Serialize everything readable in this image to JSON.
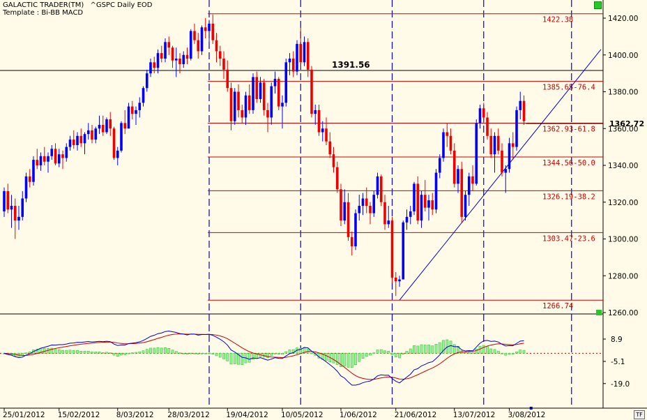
{
  "header": {
    "title": "GALACTIC TRADER(TM)",
    "template": "Template : Bi-BB MACD",
    "symbol": "^GSPC Daily EOD"
  },
  "chart_data": [
    {
      "type": "candlestick",
      "ylim": [
        1255,
        1430
      ],
      "yticks": [
        "1420.00",
        "1400.00",
        "1380.00",
        "1360.00",
        "1340.00",
        "1320.00",
        "1300.00",
        "1280.00",
        "1260.00"
      ],
      "ytick_values": [
        1420,
        1400,
        1380,
        1360,
        1340,
        1320,
        1300,
        1280,
        1260
      ],
      "current_price": 1362.72,
      "current_price_label": "1362.72",
      "resistance": {
        "value": 1391.56,
        "label": "1391.56"
      },
      "fib_levels": [
        {
          "value": 1422.38,
          "label": "1422.38"
        },
        {
          "value": 1385.65,
          "label": "1385.65-76.4"
        },
        {
          "value": 1362.93,
          "label": "1362.93-61.8"
        },
        {
          "value": 1344.56,
          "label": "1344.56-50.0"
        },
        {
          "value": 1326.19,
          "label": "1326.19-38.2"
        },
        {
          "value": 1303.47,
          "label": "1303.47-23.6"
        },
        {
          "value": 1266.74,
          "label": "1266.74"
        }
      ],
      "trendline": {
        "from": {
          "bar": 108,
          "price": 1266.74
        },
        "to": {
          "bar": 170,
          "price": 1403
        }
      },
      "vertical_markers_bar": [
        56,
        81,
        106,
        131,
        155
      ],
      "candles": [
        [
          1315,
          1328,
          1312,
          1326
        ],
        [
          1326,
          1330,
          1314,
          1316
        ],
        [
          1316,
          1324,
          1306,
          1318
        ],
        [
          1318,
          1322,
          1300,
          1310
        ],
        [
          1310,
          1318,
          1305,
          1312
        ],
        [
          1312,
          1326,
          1310,
          1322
        ],
        [
          1322,
          1336,
          1320,
          1334
        ],
        [
          1334,
          1338,
          1328,
          1331
        ],
        [
          1331,
          1345,
          1329,
          1343
        ],
        [
          1343,
          1349,
          1338,
          1340
        ],
        [
          1340,
          1347,
          1337,
          1345
        ],
        [
          1345,
          1350,
          1340,
          1342
        ],
        [
          1342,
          1347,
          1336,
          1345
        ],
        [
          1345,
          1351,
          1343,
          1349
        ],
        [
          1349,
          1352,
          1340,
          1341
        ],
        [
          1341,
          1349,
          1339,
          1346
        ],
        [
          1346,
          1348,
          1338,
          1344
        ],
        [
          1344,
          1352,
          1342,
          1350
        ],
        [
          1350,
          1356,
          1348,
          1354
        ],
        [
          1354,
          1359,
          1349,
          1351
        ],
        [
          1351,
          1358,
          1348,
          1356
        ],
        [
          1356,
          1360,
          1350,
          1352
        ],
        [
          1352,
          1358,
          1346,
          1357
        ],
        [
          1357,
          1363,
          1354,
          1359
        ],
        [
          1359,
          1362,
          1352,
          1354
        ],
        [
          1354,
          1361,
          1352,
          1360
        ],
        [
          1360,
          1367,
          1357,
          1362
        ],
        [
          1362,
          1367,
          1356,
          1358
        ],
        [
          1358,
          1366,
          1357,
          1365
        ],
        [
          1365,
          1369,
          1356,
          1360
        ],
        [
          1360,
          1361,
          1343,
          1344
        ],
        [
          1344,
          1350,
          1340,
          1348
        ],
        [
          1348,
          1364,
          1347,
          1363
        ],
        [
          1363,
          1370,
          1357,
          1360
        ],
        [
          1360,
          1374,
          1360,
          1372
        ],
        [
          1372,
          1375,
          1365,
          1368
        ],
        [
          1368,
          1372,
          1362,
          1370
        ],
        [
          1370,
          1377,
          1366,
          1374
        ],
        [
          1374,
          1383,
          1372,
          1382
        ],
        [
          1382,
          1392,
          1380,
          1390
        ],
        [
          1390,
          1398,
          1388,
          1396
        ],
        [
          1396,
          1399,
          1390,
          1393
        ],
        [
          1393,
          1403,
          1390,
          1401
        ],
        [
          1401,
          1405,
          1396,
          1398
        ],
        [
          1398,
          1409,
          1396,
          1407
        ],
        [
          1407,
          1410,
          1400,
          1404
        ],
        [
          1404,
          1405,
          1393,
          1397
        ],
        [
          1397,
          1404,
          1388,
          1398
        ],
        [
          1398,
          1401,
          1390,
          1395
        ],
        [
          1395,
          1402,
          1393,
          1400
        ],
        [
          1400,
          1404,
          1395,
          1398
        ],
        [
          1398,
          1414,
          1397,
          1413
        ],
        [
          1413,
          1417,
          1406,
          1408
        ],
        [
          1408,
          1412,
          1398,
          1402
        ],
        [
          1402,
          1416,
          1400,
          1415
        ],
        [
          1415,
          1420,
          1409,
          1413
        ],
        [
          1413,
          1419,
          1405,
          1417
        ],
        [
          1417,
          1422,
          1406,
          1408
        ],
        [
          1408,
          1412,
          1396,
          1402
        ],
        [
          1402,
          1405,
          1394,
          1398
        ],
        [
          1398,
          1402,
          1387,
          1392
        ],
        [
          1392,
          1397,
          1380,
          1382
        ],
        [
          1382,
          1385,
          1359,
          1364
        ],
        [
          1364,
          1382,
          1362,
          1380
        ],
        [
          1380,
          1384,
          1366,
          1370
        ],
        [
          1370,
          1373,
          1363,
          1366
        ],
        [
          1366,
          1380,
          1362,
          1378
        ],
        [
          1378,
          1384,
          1368,
          1370
        ],
        [
          1370,
          1390,
          1368,
          1388
        ],
        [
          1388,
          1391,
          1374,
          1376
        ],
        [
          1376,
          1388,
          1374,
          1385
        ],
        [
          1385,
          1387,
          1367,
          1370
        ],
        [
          1370,
          1374,
          1358,
          1366
        ],
        [
          1366,
          1385,
          1362,
          1383
        ],
        [
          1383,
          1391,
          1379,
          1387
        ],
        [
          1387,
          1388,
          1370,
          1372
        ],
        [
          1372,
          1378,
          1360,
          1374
        ],
        [
          1374,
          1398,
          1372,
          1396
        ],
        [
          1396,
          1401,
          1389,
          1398
        ],
        [
          1398,
          1402,
          1388,
          1391
        ],
        [
          1391,
          1408,
          1389,
          1406
        ],
        [
          1406,
          1415,
          1393,
          1396
        ],
        [
          1396,
          1410,
          1394,
          1407
        ],
        [
          1407,
          1409,
          1388,
          1392
        ],
        [
          1392,
          1394,
          1366,
          1368
        ],
        [
          1368,
          1373,
          1362,
          1370
        ],
        [
          1370,
          1373,
          1356,
          1358
        ],
        [
          1358,
          1364,
          1353,
          1360
        ],
        [
          1360,
          1366,
          1351,
          1353
        ],
        [
          1353,
          1358,
          1344,
          1346
        ],
        [
          1346,
          1350,
          1336,
          1339
        ],
        [
          1339,
          1342,
          1325,
          1327
        ],
        [
          1327,
          1330,
          1307,
          1310
        ],
        [
          1310,
          1327,
          1308,
          1320
        ],
        [
          1320,
          1325,
          1299,
          1301
        ],
        [
          1301,
          1304,
          1291,
          1296
        ],
        [
          1296,
          1316,
          1294,
          1314
        ],
        [
          1314,
          1324,
          1310,
          1318
        ],
        [
          1318,
          1325,
          1313,
          1322
        ],
        [
          1322,
          1328,
          1314,
          1318
        ],
        [
          1318,
          1320,
          1308,
          1314
        ],
        [
          1314,
          1326,
          1312,
          1324
        ],
        [
          1324,
          1336,
          1322,
          1334
        ],
        [
          1334,
          1335,
          1318,
          1320
        ],
        [
          1320,
          1324,
          1305,
          1308
        ],
        [
          1308,
          1318,
          1306,
          1310
        ],
        [
          1310,
          1312,
          1276,
          1279
        ],
        [
          1279,
          1282,
          1269,
          1277
        ],
        [
          1277,
          1280,
          1274,
          1278
        ],
        [
          1278,
          1310,
          1278,
          1309
        ],
        [
          1309,
          1316,
          1305,
          1312
        ],
        [
          1312,
          1318,
          1308,
          1315
        ],
        [
          1315,
          1331,
          1313,
          1330
        ],
        [
          1330,
          1334,
          1308,
          1310
        ],
        [
          1310,
          1326,
          1306,
          1324
        ],
        [
          1324,
          1332,
          1315,
          1317
        ],
        [
          1317,
          1324,
          1310,
          1321
        ],
        [
          1321,
          1325,
          1313,
          1316
        ],
        [
          1316,
          1338,
          1314,
          1336
        ],
        [
          1336,
          1346,
          1333,
          1344
        ],
        [
          1344,
          1360,
          1342,
          1358
        ],
        [
          1358,
          1363,
          1350,
          1356
        ],
        [
          1356,
          1360,
          1346,
          1348
        ],
        [
          1348,
          1352,
          1328,
          1330
        ],
        [
          1330,
          1340,
          1325,
          1338
        ],
        [
          1338,
          1342,
          1309,
          1312
        ],
        [
          1312,
          1326,
          1310,
          1324
        ],
        [
          1324,
          1336,
          1318,
          1334
        ],
        [
          1334,
          1340,
          1326,
          1330
        ],
        [
          1330,
          1365,
          1329,
          1363
        ],
        [
          1363,
          1373,
          1360,
          1371
        ],
        [
          1371,
          1374,
          1363,
          1366
        ],
        [
          1366,
          1369,
          1354,
          1356
        ],
        [
          1356,
          1360,
          1344,
          1346
        ],
        [
          1346,
          1358,
          1336,
          1356
        ],
        [
          1356,
          1360,
          1346,
          1348
        ],
        [
          1348,
          1352,
          1334,
          1336
        ],
        [
          1336,
          1340,
          1325,
          1338
        ],
        [
          1338,
          1355,
          1336,
          1352
        ],
        [
          1352,
          1358,
          1343,
          1350
        ],
        [
          1350,
          1372,
          1348,
          1370
        ],
        [
          1370,
          1380,
          1365,
          1375
        ],
        [
          1375,
          1378,
          1362,
          1364
        ]
      ]
    },
    {
      "type": "macd",
      "ylim": [
        -26,
        18
      ],
      "yticks": [
        "8.9",
        "-5.1",
        "-19.0"
      ],
      "ytick_values": [
        8.9,
        -5.1,
        -19.0
      ],
      "zero_line": 0,
      "series": [
        {
          "name": "MACD",
          "color": "#0000cc"
        },
        {
          "name": "Signal",
          "color": "#cc0000"
        },
        {
          "name": "Histogram",
          "color": "#33cc33"
        }
      ]
    }
  ],
  "x_axis": {
    "labels": [
      "25/01/2012",
      "15/02/2012",
      "8/03/2012",
      "28/03/2012",
      "19/04/2012",
      "10/05/2012",
      "1/06/2012",
      "21/06/2012",
      "13/07/2012",
      "3/08/2012"
    ],
    "label_bars": [
      0,
      15,
      31,
      45,
      61,
      76,
      92,
      107,
      123,
      138
    ]
  },
  "corner_label": "TF",
  "colors": {
    "up": "#0000ff",
    "down": "#ee0000",
    "fib": "#cc0000",
    "grid": "#0000cc",
    "accent": "#00cc00"
  }
}
